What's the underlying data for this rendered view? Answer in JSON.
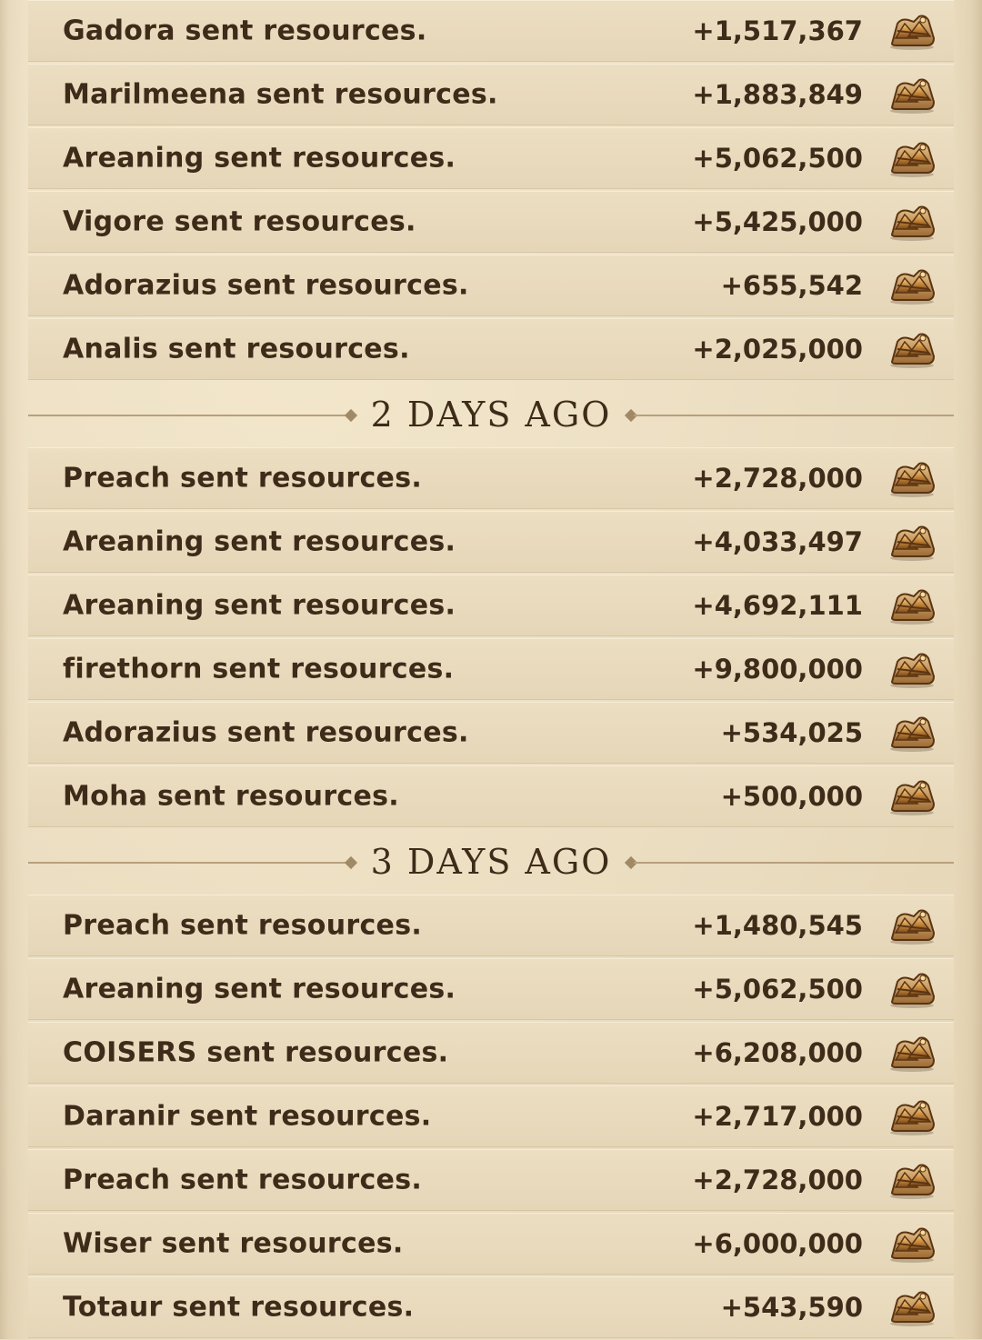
{
  "groups": [
    {
      "header": "",
      "entries": [
        {
          "text": "Gadora sent resources.",
          "amount": "+1,517,367",
          "icon": "resource-chest-icon"
        },
        {
          "text": "Marilmeena sent resources.",
          "amount": "+1,883,849",
          "icon": "resource-chest-icon"
        },
        {
          "text": "Areaning sent resources.",
          "amount": "+5,062,500",
          "icon": "resource-chest-icon"
        },
        {
          "text": "Vigore sent resources.",
          "amount": "+5,425,000",
          "icon": "resource-chest-icon"
        },
        {
          "text": "Adorazius sent resources.",
          "amount": "+655,542",
          "icon": "resource-chest-icon"
        },
        {
          "text": "Analis sent resources.",
          "amount": "+2,025,000",
          "icon": "resource-chest-icon"
        }
      ]
    },
    {
      "header": "2 DAYS AGO",
      "entries": [
        {
          "text": "Preach sent resources.",
          "amount": "+2,728,000",
          "icon": "resource-chest-icon"
        },
        {
          "text": "Areaning sent resources.",
          "amount": "+4,033,497",
          "icon": "resource-chest-icon"
        },
        {
          "text": "Areaning sent resources.",
          "amount": "+4,692,111",
          "icon": "resource-chest-icon"
        },
        {
          "text": "firethorn sent resources.",
          "amount": "+9,800,000",
          "icon": "resource-chest-icon"
        },
        {
          "text": "Adorazius sent resources.",
          "amount": "+534,025",
          "icon": "resource-chest-icon"
        },
        {
          "text": "Moha sent resources.",
          "amount": "+500,000",
          "icon": "resource-chest-icon"
        }
      ]
    },
    {
      "header": "3 DAYS AGO",
      "entries": [
        {
          "text": "Preach sent resources.",
          "amount": "+1,480,545",
          "icon": "resource-chest-icon"
        },
        {
          "text": "Areaning sent resources.",
          "amount": "+5,062,500",
          "icon": "resource-chest-icon"
        },
        {
          "text": "COISERS sent resources.",
          "amount": "+6,208,000",
          "icon": "resource-chest-icon"
        },
        {
          "text": "Daranir sent resources.",
          "amount": "+2,717,000",
          "icon": "resource-chest-icon"
        },
        {
          "text": "Preach sent resources.",
          "amount": "+2,728,000",
          "icon": "resource-chest-icon"
        },
        {
          "text": "Wiser sent resources.",
          "amount": "+6,000,000",
          "icon": "resource-chest-icon"
        },
        {
          "text": "Totaur sent resources.",
          "amount": "+543,590",
          "icon": "resource-chest-icon"
        }
      ]
    }
  ],
  "colors": {
    "text": "#3e2b19",
    "row_bg": "#ecdec2",
    "divider_line": "#b7a07c"
  }
}
